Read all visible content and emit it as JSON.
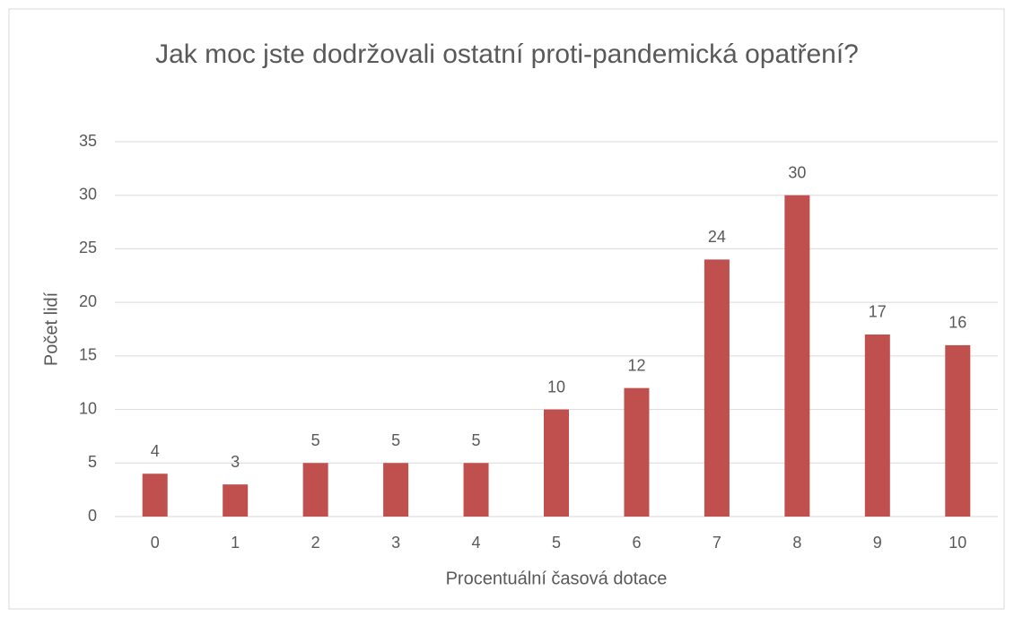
{
  "chart_data": {
    "type": "bar",
    "title": "Jak moc jste dodržovali ostatní proti-pandemická opatření?",
    "x_label": "Procentuální časová dotace",
    "y_label": "Počet lidí",
    "categories": [
      "0",
      "1",
      "2",
      "3",
      "4",
      "5",
      "6",
      "7",
      "8",
      "9",
      "10"
    ],
    "values": [
      4,
      3,
      5,
      5,
      5,
      10,
      12,
      24,
      30,
      17,
      16
    ],
    "color": "#c0504d",
    "ylim": [
      0,
      35
    ],
    "yticks": [
      0,
      5,
      10,
      15,
      20,
      25,
      30,
      35
    ],
    "grid": true
  }
}
